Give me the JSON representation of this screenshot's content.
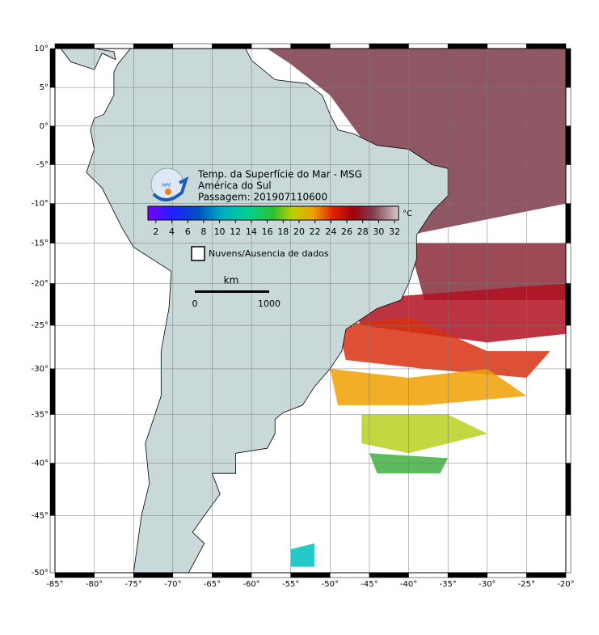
{
  "map": {
    "title_lines": [
      "Temp. da Superfície do Mar - MSG",
      "América do Sul",
      "Passagem: 201907110600"
    ],
    "logo_text": "INPE",
    "xlim": [
      -85,
      -20
    ],
    "ylim": [
      -50,
      10
    ],
    "xticks": [
      {
        "value": -85,
        "label": "-85°"
      },
      {
        "value": -80,
        "label": "-80°"
      },
      {
        "value": -75,
        "label": "-75°"
      },
      {
        "value": -70,
        "label": "-70°"
      },
      {
        "value": -65,
        "label": "-65°"
      },
      {
        "value": -60,
        "label": "-60°"
      },
      {
        "value": -55,
        "label": "-55°"
      },
      {
        "value": -50,
        "label": "-50°"
      },
      {
        "value": -45,
        "label": "-45°"
      },
      {
        "value": -40,
        "label": "-40°"
      },
      {
        "value": -35,
        "label": "-35°"
      },
      {
        "value": -30,
        "label": "-30°"
      },
      {
        "value": -25,
        "label": "-25°"
      },
      {
        "value": -20,
        "label": "-20°"
      }
    ],
    "yticks": [
      {
        "value": 10,
        "label": "10°"
      },
      {
        "value": 5,
        "label": "5°"
      },
      {
        "value": 0,
        "label": "0°"
      },
      {
        "value": -5,
        "label": "-5°"
      },
      {
        "value": -10,
        "label": "-10°"
      },
      {
        "value": -15,
        "label": "-15°"
      },
      {
        "value": -20,
        "label": "-20°"
      },
      {
        "value": -25,
        "label": "-25°"
      },
      {
        "value": -30,
        "label": "-30°"
      },
      {
        "value": -35,
        "label": "-35°"
      },
      {
        "value": -40,
        "label": "-40°"
      },
      {
        "value": -45,
        "label": "-45°"
      },
      {
        "value": -50,
        "label": "-50°"
      }
    ],
    "colorbar": {
      "range": [
        1,
        32.5
      ],
      "ticks": [
        2,
        4,
        6,
        8,
        10,
        12,
        14,
        16,
        18,
        20,
        22,
        24,
        26,
        28,
        30,
        32
      ],
      "unit": "°C"
    },
    "legend": "Nuvens/Ausencia de dados",
    "scale": {
      "unit": "km",
      "labels": [
        "0",
        "1000"
      ]
    }
  }
}
